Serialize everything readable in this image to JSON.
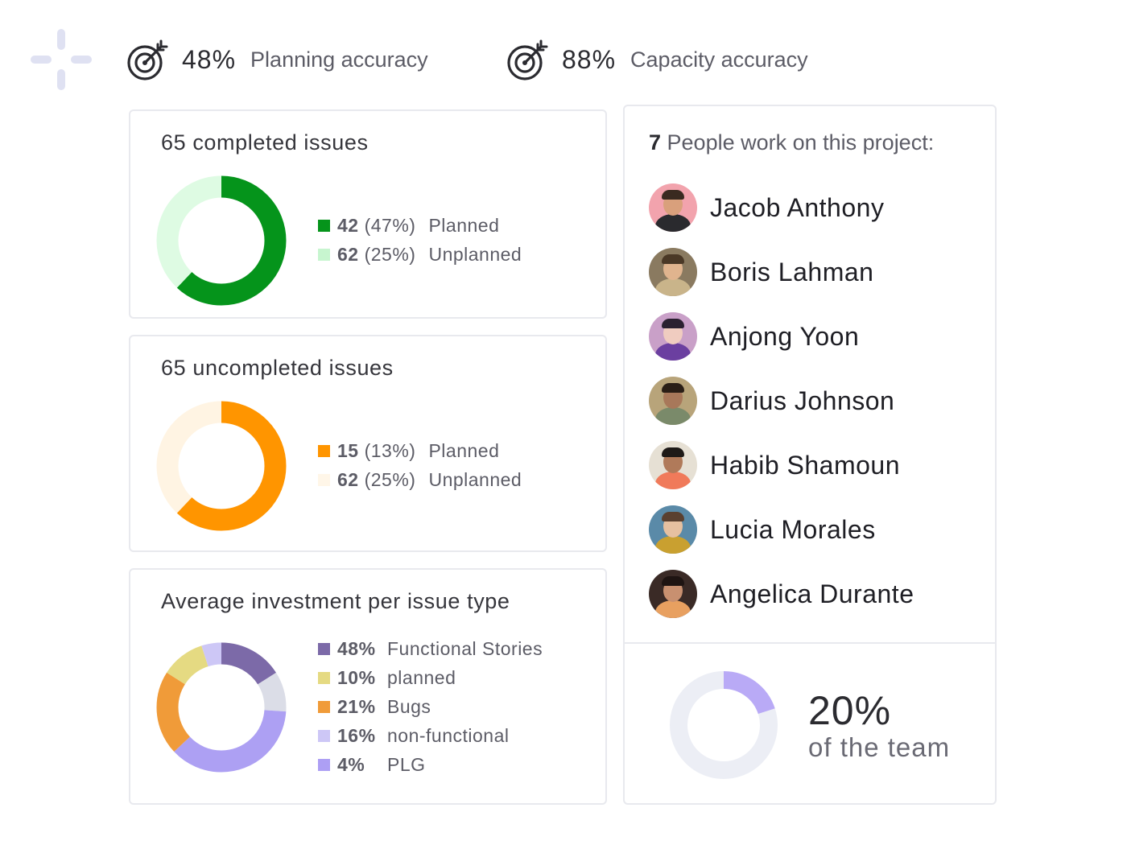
{
  "metrics": [
    {
      "value": "48%",
      "label": "Planning accuracy",
      "icon": "target-icon"
    },
    {
      "value": "88%",
      "label": "Capacity accuracy",
      "icon": "target-icon"
    }
  ],
  "completed": {
    "title": "65 completed issues",
    "legend": [
      {
        "num": "42",
        "pct": "(47%)",
        "name": "Planned",
        "color": "#05941b"
      },
      {
        "num": "62",
        "pct": "(25%)",
        "name": "Unplanned",
        "color": "#c7f5cf"
      }
    ],
    "donut": [
      {
        "value": 62,
        "color": "#05941b"
      },
      {
        "value": 38,
        "color": "#defbe3"
      }
    ]
  },
  "uncompleted": {
    "title": "65 uncompleted issues",
    "legend": [
      {
        "num": "15",
        "pct": "(13%)",
        "name": "Planned",
        "color": "#ff9500"
      },
      {
        "num": "62",
        "pct": "(25%)",
        "name": "Unplanned",
        "color": "#fff6e8"
      }
    ],
    "donut": [
      {
        "value": 62,
        "color": "#ff9500"
      },
      {
        "value": 38,
        "color": "#fff4e3"
      }
    ]
  },
  "investment": {
    "title": "Average investment per issue type",
    "legend": [
      {
        "num": "48%",
        "name": "Functional Stories",
        "color": "#7c6aa8"
      },
      {
        "num": "10%",
        "name": "planned",
        "color": "#e5da82"
      },
      {
        "num": "21%",
        "name": "Bugs",
        "color": "#f09b39"
      },
      {
        "num": "16%",
        "name": "non-functional",
        "color": "#cdc7f6"
      },
      {
        "num": "4%",
        "name": "PLG",
        "color": "#ad9ff4"
      }
    ],
    "donut": [
      {
        "value": 16,
        "color": "#7c6aa8"
      },
      {
        "value": 10,
        "color": "#dbdde7"
      },
      {
        "value": 37,
        "color": "#ada0f3"
      },
      {
        "value": 21,
        "color": "#f09b39"
      },
      {
        "value": 11,
        "color": "#e5da82"
      },
      {
        "value": 5,
        "color": "#cdc7f6"
      }
    ]
  },
  "people": {
    "count": "7",
    "title_rest": " People work on this project:",
    "list": [
      {
        "name": "Jacob Anthony",
        "bg": "#f2a3ad",
        "skin": "#d9a07c",
        "shirt": "#2a2a2e",
        "hair": "#3a2a20"
      },
      {
        "name": "Boris Lahman",
        "bg": "#8a7a60",
        "skin": "#e0b48e",
        "shirt": "#c9b48a",
        "hair": "#4a3826"
      },
      {
        "name": "Anjong Yoon",
        "bg": "#c9a0c8",
        "skin": "#f0ccc0",
        "shirt": "#6b3fa0",
        "hair": "#2a2030"
      },
      {
        "name": "Darius Johnson",
        "bg": "#b8a47a",
        "skin": "#a8785a",
        "shirt": "#7a8a6a",
        "hair": "#2a1e16"
      },
      {
        "name": "Habib Shamoun",
        "bg": "#e6e0d4",
        "skin": "#b07a5a",
        "shirt": "#f07a5a",
        "hair": "#1e1a18"
      },
      {
        "name": "Lucia Morales",
        "bg": "#5a8aa8",
        "skin": "#e6c0a0",
        "shirt": "#c9a030",
        "hair": "#5a4030"
      },
      {
        "name": "Angelica Durante",
        "bg": "#3a2a26",
        "skin": "#c89070",
        "shirt": "#e8a060",
        "hair": "#1e1412"
      }
    ]
  },
  "team": {
    "pct": "20%",
    "label": "of the team",
    "donut": [
      {
        "value": 20,
        "color": "#b9aaf6"
      },
      {
        "value": 80,
        "color": "#eceef5"
      }
    ]
  }
}
